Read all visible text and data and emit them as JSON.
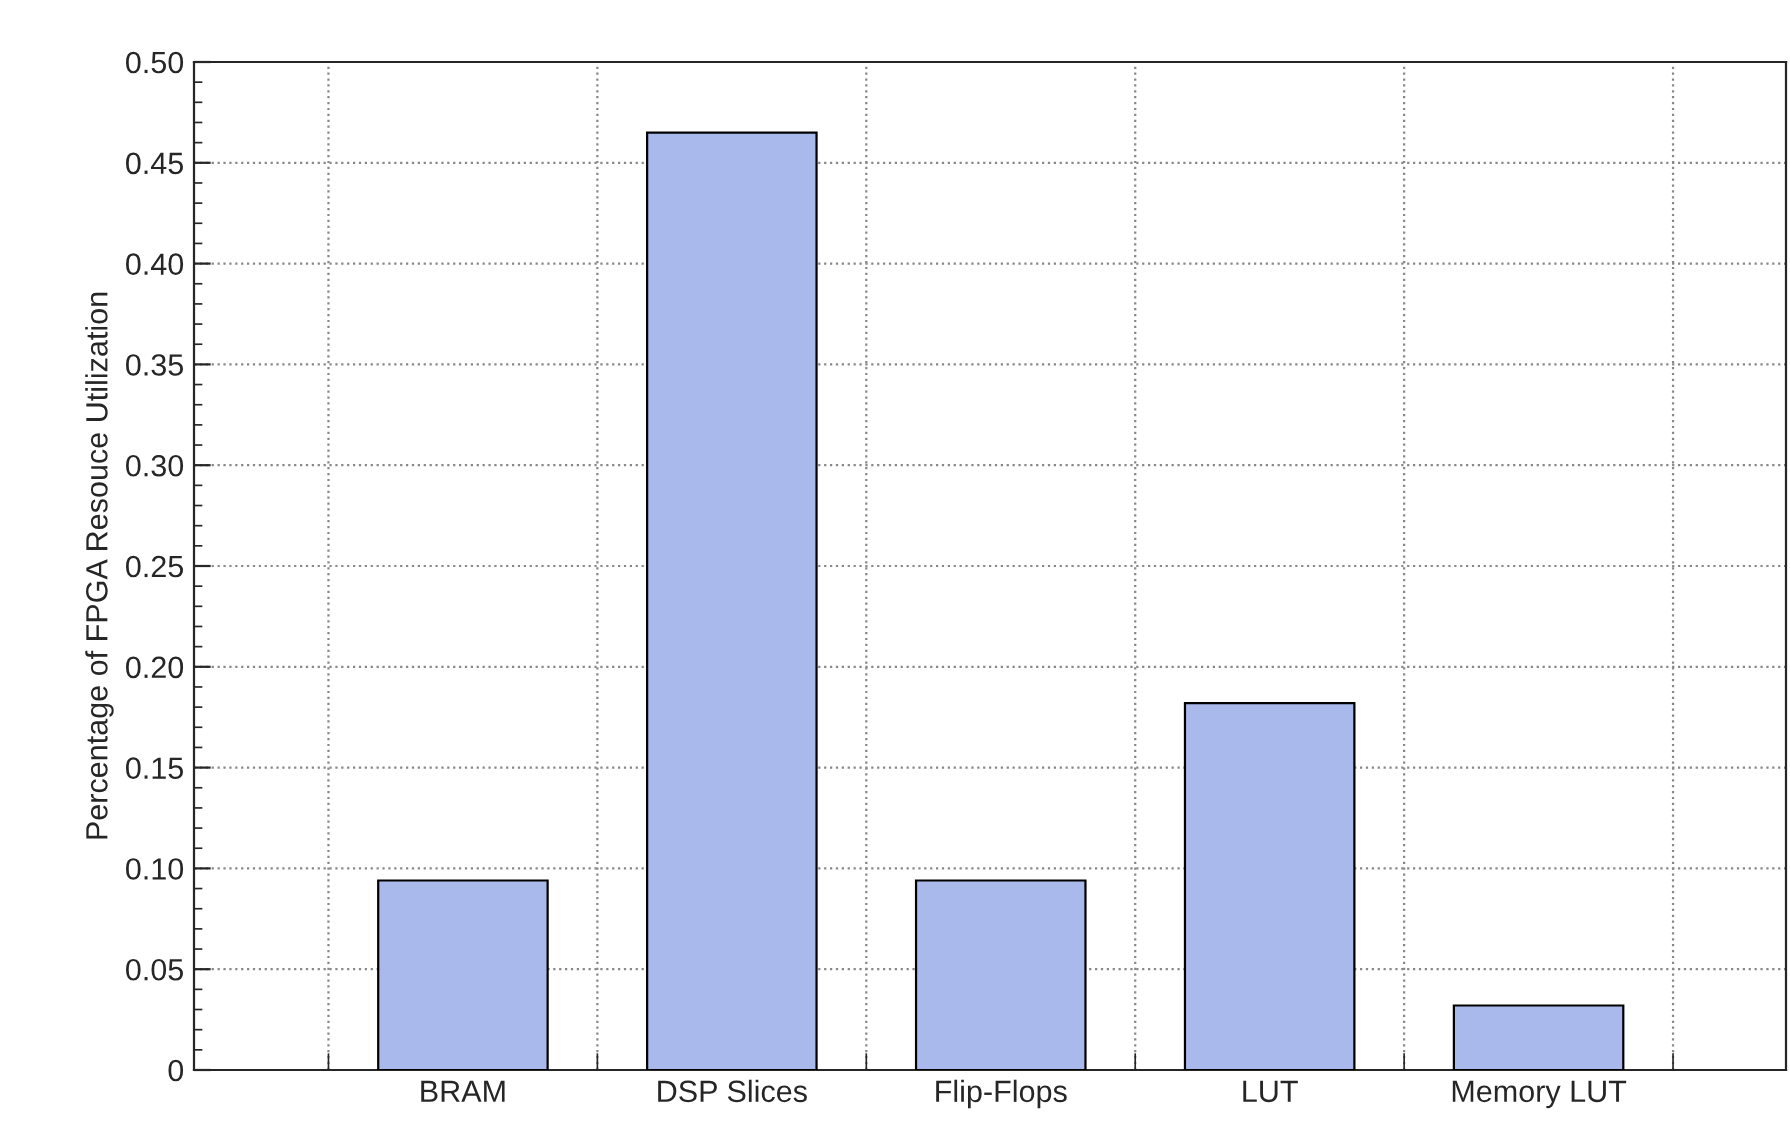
{
  "chart_data": {
    "type": "bar",
    "ylabel": "Percentage of FPGA Resouce Utilization",
    "categories": [
      "BRAM",
      "DSP Slices",
      "Flip-Flops",
      "LUT",
      "Memory LUT"
    ],
    "values": [
      0.094,
      0.465,
      0.094,
      0.182,
      0.032
    ],
    "color": "#a9b9ec",
    "ylim": [
      0,
      0.5
    ],
    "yticks": [
      {
        "value": 0,
        "label": "0"
      },
      {
        "value": 0.05,
        "label": "0.05"
      },
      {
        "value": 0.1,
        "label": "0.10"
      },
      {
        "value": 0.15,
        "label": "0.15"
      },
      {
        "value": 0.2,
        "label": "0.20"
      },
      {
        "value": 0.25,
        "label": "0.25"
      },
      {
        "value": 0.3,
        "label": "0.30"
      },
      {
        "value": 0.35,
        "label": "0.35"
      },
      {
        "value": 0.4,
        "label": "0.40"
      },
      {
        "value": 0.45,
        "label": "0.45"
      },
      {
        "value": 0.5,
        "label": "0.50"
      }
    ],
    "grid": true
  }
}
